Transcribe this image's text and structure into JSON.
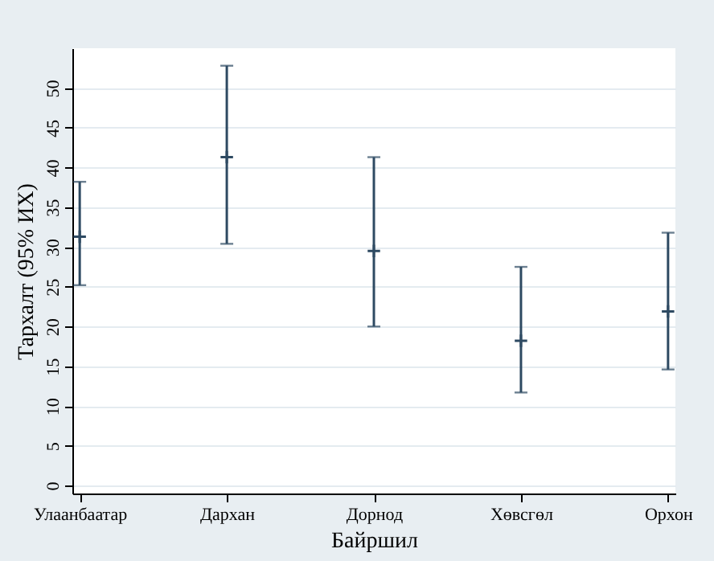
{
  "chart_data": {
    "type": "scatter",
    "xlabel": "Байршил",
    "ylabel": "Тархалт  (95% ИХ)",
    "categories": [
      "Улаанбаатар",
      "Дархан",
      "Дорнод",
      "Хөвсгөл",
      "Орхон"
    ],
    "series": [
      {
        "color": "#2e4a62",
        "values": [
          31.3,
          41.3,
          29.5,
          18.2,
          21.9
        ],
        "errors": [
          [
            25.2,
            38.2
          ],
          [
            30.4,
            52.8
          ],
          [
            20.0,
            41.3
          ],
          [
            11.7,
            27.5
          ],
          [
            14.6,
            31.8
          ]
        ]
      }
    ],
    "ylim": [
      -1,
      55
    ],
    "yticks": [
      0,
      5,
      10,
      15,
      20,
      25,
      30,
      35,
      40,
      45,
      50
    ],
    "grid": "y",
    "marker": "cross"
  }
}
